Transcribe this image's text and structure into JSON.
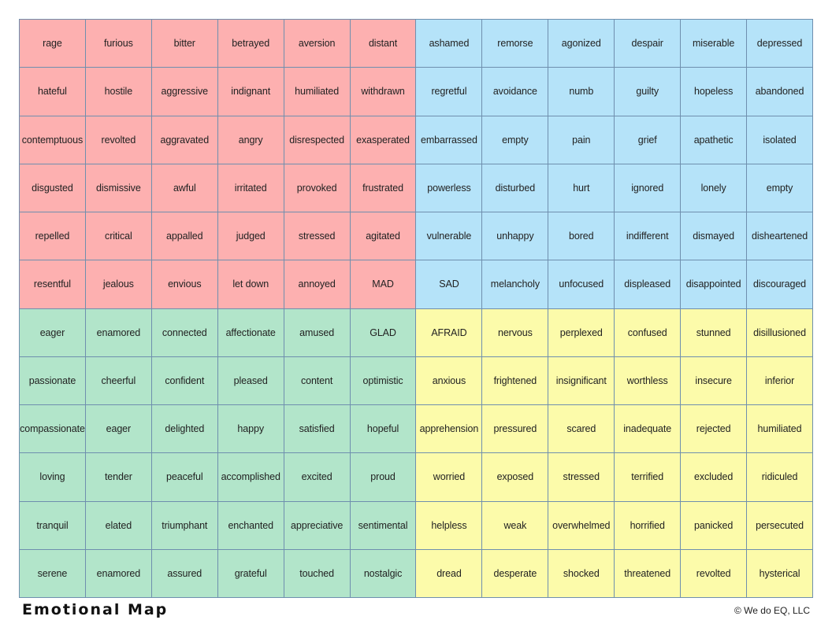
{
  "colors": {
    "anger": "#fdb0b0",
    "sad": "#b5e3f9",
    "glad": "#b2e5ca",
    "afraid": "#fcfbaa",
    "grid_line": "#6f8fae"
  },
  "quadrants": [
    {
      "key": "anger",
      "rows": [
        [
          "rage",
          "furious",
          "bitter",
          "betrayed",
          "aversion",
          "distant"
        ],
        [
          "hateful",
          "hostile",
          "aggressive",
          "indignant",
          "humiliated",
          "withdrawn"
        ],
        [
          "contemptuous",
          "revolted",
          "aggravated",
          "angry",
          "disrespected",
          "exasperated"
        ],
        [
          "disgusted",
          "dismissive",
          "awful",
          "irritated",
          "provoked",
          "frustrated"
        ],
        [
          "repelled",
          "critical",
          "appalled",
          "judged",
          "stressed",
          "agitated"
        ],
        [
          "resentful",
          "jealous",
          "envious",
          "let down",
          "annoyed",
          "MAD"
        ]
      ]
    },
    {
      "key": "sad",
      "rows": [
        [
          "ashamed",
          "remorse",
          "agonized",
          "despair",
          "miserable",
          "depressed"
        ],
        [
          "regretful",
          "avoidance",
          "numb",
          "guilty",
          "hopeless",
          "abandoned"
        ],
        [
          "embarrassed",
          "empty",
          "pain",
          "grief",
          "apathetic",
          "isolated"
        ],
        [
          "powerless",
          "disturbed",
          "hurt",
          "ignored",
          "lonely",
          "empty"
        ],
        [
          "vulnerable",
          "unhappy",
          "bored",
          "indifferent",
          "dismayed",
          "disheartened"
        ],
        [
          "SAD",
          "melancholy",
          "unfocused",
          "displeased",
          "disappointed",
          "discouraged"
        ]
      ]
    },
    {
      "key": "glad",
      "rows": [
        [
          "eager",
          "enamored",
          "connected",
          "affectionate",
          "amused",
          "GLAD"
        ],
        [
          "passionate",
          "cheerful",
          "confident",
          "pleased",
          "content",
          "optimistic"
        ],
        [
          "compassionate",
          "eager",
          "delighted",
          "happy",
          "satisfied",
          "hopeful"
        ],
        [
          "loving",
          "tender",
          "peaceful",
          "accomplished",
          "excited",
          "proud"
        ],
        [
          "tranquil",
          "elated",
          "triumphant",
          "enchanted",
          "appreciative",
          "sentimental"
        ],
        [
          "serene",
          "enamored",
          "assured",
          "grateful",
          "touched",
          "nostalgic"
        ]
      ]
    },
    {
      "key": "afraid",
      "rows": [
        [
          "AFRAID",
          "nervous",
          "perplexed",
          "confused",
          "stunned",
          "disillusioned"
        ],
        [
          "anxious",
          "frightened",
          "insignificant",
          "worthless",
          "insecure",
          "inferior"
        ],
        [
          "apprehension",
          "pressured",
          "scared",
          "inadequate",
          "rejected",
          "humiliated"
        ],
        [
          "worried",
          "exposed",
          "stressed",
          "terrified",
          "excluded",
          "ridiculed"
        ],
        [
          "helpless",
          "weak",
          "overwhelmed",
          "horrified",
          "panicked",
          "persecuted"
        ],
        [
          "dread",
          "desperate",
          "shocked",
          "threatened",
          "revolted",
          "hysterical"
        ]
      ]
    }
  ],
  "footer": {
    "title": "Emotional Map",
    "copyright": "© We do EQ, LLC"
  }
}
